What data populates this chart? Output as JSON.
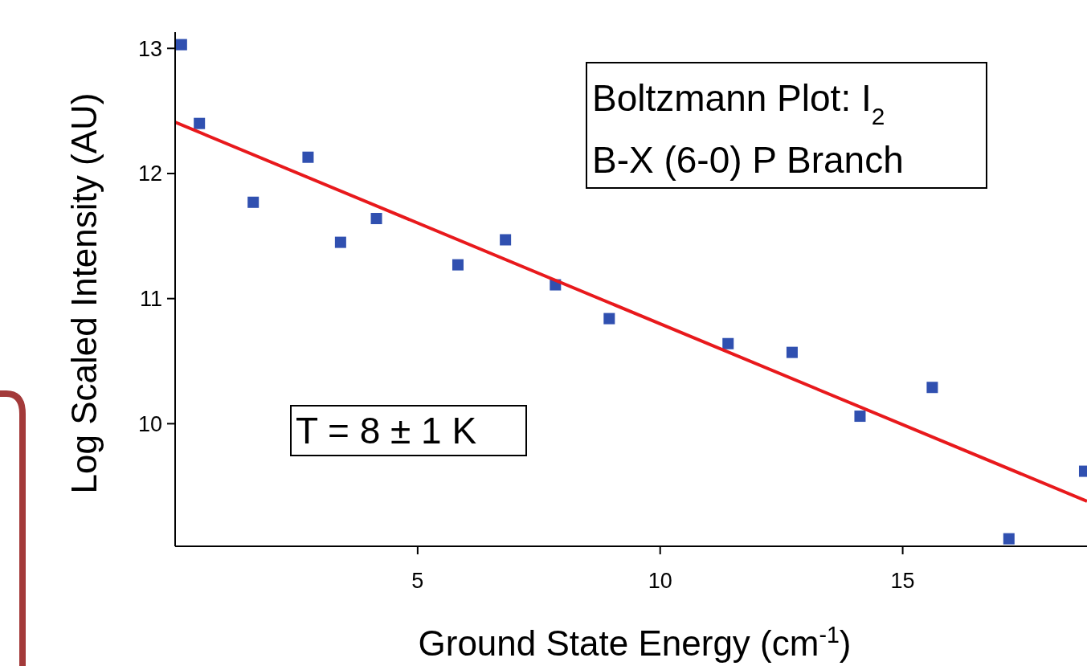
{
  "chart_data": {
    "type": "scatter",
    "xlabel": "Ground State Energy (cm$^{-1}$)",
    "ylabel": "Log Scaled Intensity (AU)",
    "annotations": [
      "Boltzmann Plot: I$_{2}$",
      "B-X (6-0) P Branch",
      "T = 8 ± 1 K"
    ],
    "xlim": [
      0,
      18.8
    ],
    "ylim": [
      9.02,
      13.13
    ],
    "xticks": [
      5,
      10,
      15
    ],
    "yticks": [
      10,
      11,
      12,
      13
    ],
    "grid": false,
    "series": [
      {
        "color": "#3050b0",
        "marker": "square",
        "x": [
          0.13,
          0.5,
          1.61,
          2.74,
          3.41,
          4.15,
          5.83,
          6.81,
          7.84,
          8.95,
          11.4,
          12.72,
          14.12,
          15.61,
          17.19,
          18.75
        ],
        "values": [
          13.03,
          12.4,
          11.77,
          12.13,
          11.45,
          11.64,
          11.27,
          11.47,
          11.11,
          10.84,
          10.64,
          10.57,
          10.06,
          10.29,
          9.08,
          9.62
        ]
      },
      {
        "type": "line",
        "color": "#e8191c",
        "marker": "none",
        "line_style": "solid",
        "x": [
          0,
          18.8
        ],
        "values": [
          12.41,
          9.38
        ]
      }
    ]
  }
}
